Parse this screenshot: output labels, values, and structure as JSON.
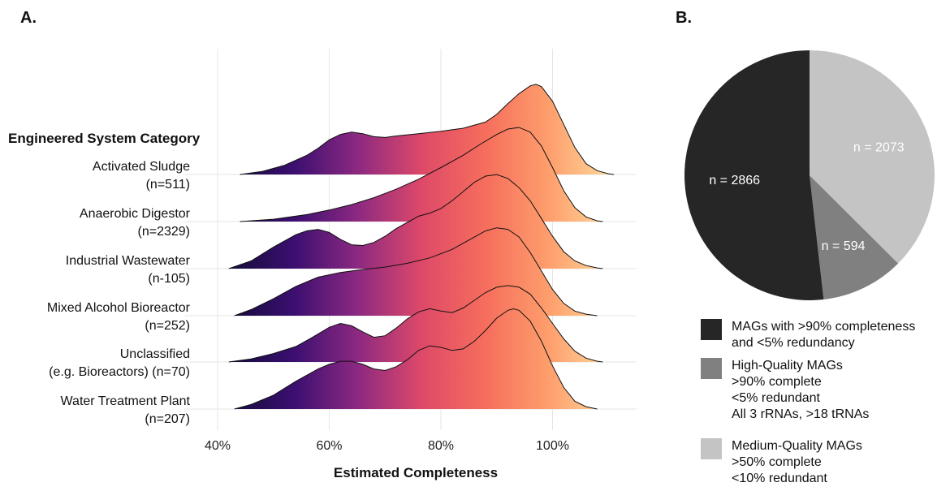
{
  "panels": {
    "a_label": "A.",
    "b_label": "B."
  },
  "colors": {
    "gradient": [
      "#140b3a",
      "#3b0f70",
      "#8c2981",
      "#de4968",
      "#f66e5c",
      "#fe9f6d",
      "#fddc9e"
    ],
    "pie": [
      "#262626",
      "#808080",
      "#c4c4c4"
    ],
    "pie_label_text": "#ffffff"
  },
  "chart_data": [
    {
      "type": "ridgeline",
      "ylabel": "Engineered System Category",
      "xlabel": "Estimated Completeness",
      "x_ticks": [
        "40%",
        "60%",
        "80%",
        "100%"
      ],
      "x_tick_values": [
        40,
        60,
        80,
        100
      ],
      "xlim": [
        32,
        118
      ],
      "grid": "vertical",
      "series": [
        {
          "label_line1": "Activated Sludge",
          "label_line2": "(n=511)",
          "x": [
            44,
            48,
            52,
            56,
            58,
            60,
            62,
            64,
            66,
            68,
            70,
            72,
            76,
            80,
            84,
            88,
            90,
            92,
            94,
            96,
            97,
            98,
            100,
            102,
            104,
            106,
            108,
            110,
            111
          ],
          "y": [
            0,
            0.04,
            0.12,
            0.25,
            0.34,
            0.45,
            0.52,
            0.55,
            0.53,
            0.49,
            0.48,
            0.5,
            0.53,
            0.56,
            0.6,
            0.68,
            0.78,
            0.92,
            1.05,
            1.15,
            1.17,
            1.14,
            0.95,
            0.65,
            0.35,
            0.14,
            0.05,
            0.01,
            0
          ]
        },
        {
          "label_line1": "Anaerobic Digestor",
          "label_line2": "(n=2329)",
          "x": [
            44,
            50,
            56,
            60,
            64,
            68,
            72,
            76,
            80,
            84,
            87,
            90,
            92,
            94,
            96,
            98,
            100,
            102,
            104,
            106,
            108,
            109
          ],
          "y": [
            0,
            0.03,
            0.09,
            0.15,
            0.22,
            0.31,
            0.42,
            0.55,
            0.7,
            0.86,
            1.0,
            1.13,
            1.2,
            1.22,
            1.16,
            0.98,
            0.7,
            0.4,
            0.18,
            0.06,
            0.01,
            0
          ]
        },
        {
          "label_line1": "Industrial Wastewater",
          "label_line2": "(n-105)",
          "x": [
            42,
            46,
            50,
            54,
            56,
            58,
            60,
            62,
            64,
            66,
            68,
            70,
            72,
            74,
            76,
            78,
            80,
            82,
            84,
            86,
            88,
            90,
            92,
            94,
            96,
            98,
            100,
            102,
            104,
            106,
            108,
            109
          ],
          "y": [
            0,
            0.1,
            0.28,
            0.44,
            0.49,
            0.51,
            0.47,
            0.38,
            0.31,
            0.3,
            0.34,
            0.42,
            0.52,
            0.6,
            0.68,
            0.72,
            0.78,
            0.88,
            1.0,
            1.12,
            1.2,
            1.22,
            1.17,
            1.05,
            0.88,
            0.65,
            0.42,
            0.22,
            0.1,
            0.04,
            0.01,
            0
          ]
        },
        {
          "label_line1": "Mixed Alcohol Bioreactor",
          "label_line2": "(n=252)",
          "x": [
            43,
            46,
            50,
            54,
            58,
            62,
            66,
            70,
            74,
            78,
            82,
            86,
            88,
            90,
            92,
            94,
            96,
            98,
            100,
            102,
            104,
            106,
            108
          ],
          "y": [
            0,
            0.08,
            0.22,
            0.38,
            0.5,
            0.56,
            0.6,
            0.63,
            0.68,
            0.75,
            0.86,
            1.02,
            1.1,
            1.14,
            1.12,
            1.02,
            0.82,
            0.58,
            0.34,
            0.16,
            0.06,
            0.02,
            0
          ]
        },
        {
          "label_line1": "Unclassified",
          "label_line2": "(e.g. Bioreactors) (n=70)",
          "x": [
            42,
            46,
            50,
            54,
            57,
            60,
            62,
            64,
            66,
            68,
            70,
            72,
            74,
            76,
            78,
            80,
            82,
            84,
            86,
            88,
            90,
            92,
            94,
            96,
            98,
            100,
            102,
            104,
            106,
            108,
            109
          ],
          "y": [
            0,
            0.04,
            0.11,
            0.2,
            0.32,
            0.45,
            0.5,
            0.47,
            0.39,
            0.32,
            0.34,
            0.44,
            0.56,
            0.65,
            0.69,
            0.66,
            0.64,
            0.7,
            0.8,
            0.9,
            0.97,
            0.99,
            0.97,
            0.88,
            0.7,
            0.5,
            0.3,
            0.14,
            0.05,
            0.01,
            0
          ]
        },
        {
          "label_line1": "Water Treatment Plant",
          "label_line2": "(n=207)",
          "x": [
            43,
            46,
            50,
            54,
            58,
            60,
            62,
            64,
            66,
            68,
            70,
            72,
            74,
            76,
            78,
            80,
            82,
            84,
            86,
            88,
            90,
            92,
            93,
            94,
            96,
            98,
            100,
            102,
            104,
            106,
            108
          ],
          "y": [
            0,
            0.06,
            0.18,
            0.36,
            0.52,
            0.58,
            0.62,
            0.62,
            0.58,
            0.52,
            0.5,
            0.55,
            0.64,
            0.76,
            0.82,
            0.8,
            0.76,
            0.78,
            0.88,
            1.02,
            1.18,
            1.28,
            1.3,
            1.28,
            1.14,
            0.88,
            0.56,
            0.28,
            0.1,
            0.03,
            0
          ]
        }
      ]
    },
    {
      "type": "pie",
      "slices": [
        {
          "value": 2866,
          "label": "n = 2866"
        },
        {
          "value": 594,
          "label": "n = 594"
        },
        {
          "value": 2073,
          "label": "n = 2073"
        }
      ],
      "legend": [
        {
          "lines": [
            "MAGs with >90% completeness",
            "and <5% redundancy"
          ]
        },
        {
          "lines": [
            "High-Quality MAGs",
            ">90% complete",
            "<5% redundant",
            "All 3 rRNAs, >18 tRNAs"
          ]
        },
        {
          "lines": [
            "Medium-Quality MAGs",
            ">50% complete",
            "<10% redundant"
          ]
        }
      ],
      "legend_position": "bottom"
    }
  ]
}
